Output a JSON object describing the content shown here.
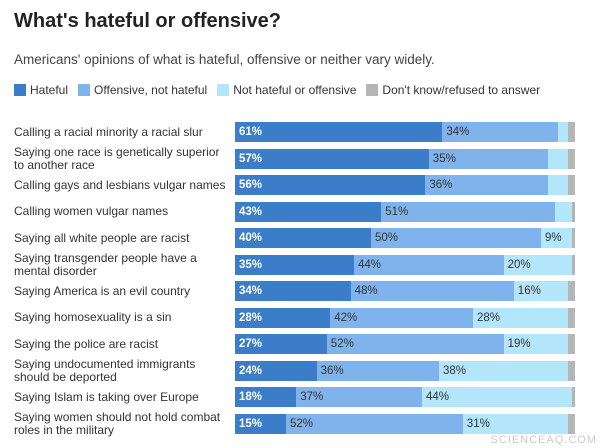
{
  "chart_data": {
    "type": "stacked-bar",
    "title": "What's hateful or offensive?",
    "subtitle": "Americans' opinions of what is hateful, offensive or neither vary widely.",
    "watermark": "SCIENCEAQ.COM",
    "xlim": [
      0,
      100
    ],
    "categories": [
      "Calling a racial minority a racial slur",
      "Saying one race is genetically superior to another race",
      "Calling gays and lesbians vulgar names",
      "Calling women vulgar names",
      "Saying all white people are racist",
      "Saying transgender people have a mental disorder",
      "Saying America is an evil country",
      "Saying homosexuality is a sin",
      "Saying the police are racist",
      "Saying undocumented immigrants should be deported",
      "Saying Islam is taking over Europe",
      "Saying women should not hold combat roles in the military"
    ],
    "series": [
      {
        "name": "Hateful",
        "color": "#3b7dc8",
        "values": [
          61,
          57,
          56,
          43,
          40,
          35,
          34,
          28,
          27,
          24,
          18,
          15
        ],
        "value_labels": [
          "61%",
          "57%",
          "56%",
          "43%",
          "40%",
          "35%",
          "34%",
          "28%",
          "27%",
          "24%",
          "18%",
          "15%"
        ]
      },
      {
        "name": "Offensive, not hateful",
        "color": "#80b3ec",
        "values": [
          34,
          35,
          36,
          51,
          50,
          44,
          48,
          42,
          52,
          36,
          37,
          52
        ],
        "value_labels": [
          "34%",
          "35%",
          "36%",
          "51%",
          "50%",
          "44%",
          "48%",
          "42%",
          "52%",
          "36%",
          "37%",
          "52%"
        ]
      },
      {
        "name": "Not hateful or offensive",
        "color": "#b4e6fb",
        "values": [
          3,
          6,
          6,
          5,
          9,
          20,
          16,
          28,
          19,
          38,
          44,
          31
        ],
        "value_labels": [
          null,
          null,
          null,
          null,
          "9%",
          "20%",
          "16%",
          "28%",
          "19%",
          "38%",
          "44%",
          "31%"
        ]
      },
      {
        "name": "Don't know/refused to answer",
        "color": "#b5b5b5",
        "values": [
          2,
          2,
          2,
          1,
          1,
          1,
          2,
          2,
          2,
          2,
          1,
          2
        ]
      }
    ]
  }
}
